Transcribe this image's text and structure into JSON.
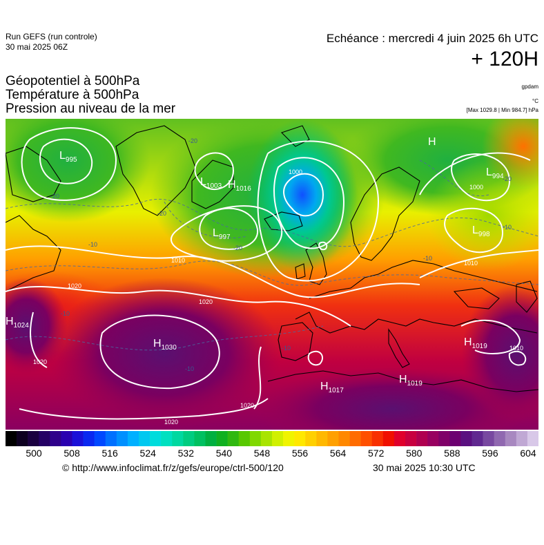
{
  "header": {
    "run_title": "Run GEFS (run controle)",
    "run_date": "30 mai 2025 06Z",
    "echeance": "Echéance : mercredi 4 juin 2025 6h UTC",
    "lead_time": "+ 120H"
  },
  "parameters": [
    "Géopotentiel à 500hPa",
    "Température à 500hPa",
    "Pression au niveau de la mer"
  ],
  "units": {
    "geopotential": "gpdam",
    "temperature": "°C",
    "pressure_range": "[Max 1029.8 | Min 984.7] hPa"
  },
  "pressure_centers": [
    {
      "type": "L",
      "value": "995"
    },
    {
      "type": "L",
      "value": "1003"
    },
    {
      "type": "H",
      "value": "1016"
    },
    {
      "type": "L",
      "value": "997"
    },
    {
      "type": "H",
      "value": ""
    },
    {
      "type": "L",
      "value": "994"
    },
    {
      "type": "L",
      "value": "998"
    },
    {
      "type": "H",
      "value": "1024"
    },
    {
      "type": "H",
      "value": "1030"
    },
    {
      "type": "H",
      "value": "1017"
    },
    {
      "type": "H",
      "value": "1019"
    },
    {
      "type": "H",
      "value": "1019"
    }
  ],
  "isobar_labels": [
    "1010",
    "1020",
    "1020",
    "1020",
    "1020",
    "1000",
    "1000",
    "1010",
    "1010",
    "1020"
  ],
  "temperature_labels": [
    "-20",
    "-20",
    "-20",
    "-20",
    "-20",
    "-10",
    "-10",
    "-10",
    "-10",
    "-10",
    "-10"
  ],
  "colorbar": {
    "labels": [
      "500",
      "508",
      "516",
      "524",
      "532",
      "540",
      "548",
      "556",
      "564",
      "572",
      "580",
      "588",
      "596",
      "604"
    ],
    "colors": [
      "#000000",
      "#0d0020",
      "#1a0040",
      "#240064",
      "#2e008a",
      "#2a00b0",
      "#1a10d8",
      "#0a28f0",
      "#0048ff",
      "#0070ff",
      "#0090ff",
      "#00b0ff",
      "#00c8f0",
      "#00dcdc",
      "#00e0c0",
      "#00d8a0",
      "#00cc80",
      "#00c060",
      "#00b040",
      "#10b020",
      "#30b810",
      "#58c800",
      "#80d800",
      "#a8e400",
      "#d0f000",
      "#f0f400",
      "#ffe800",
      "#ffd000",
      "#ffb800",
      "#ffa000",
      "#ff8800",
      "#ff6c00",
      "#ff5000",
      "#f83000",
      "#f01000",
      "#e0002c",
      "#c80040",
      "#b00050",
      "#980060",
      "#800068",
      "#6c0070",
      "#5a1080",
      "#602890",
      "#7848a0",
      "#9068b0",
      "#a888c0",
      "#c0a8d4",
      "#d8c8e8"
    ]
  },
  "footer": {
    "credit": "© http://www.infoclimat.fr/z/gefs/europe/ctrl-500/120",
    "generated": "30 mai 2025 10:30 UTC"
  }
}
